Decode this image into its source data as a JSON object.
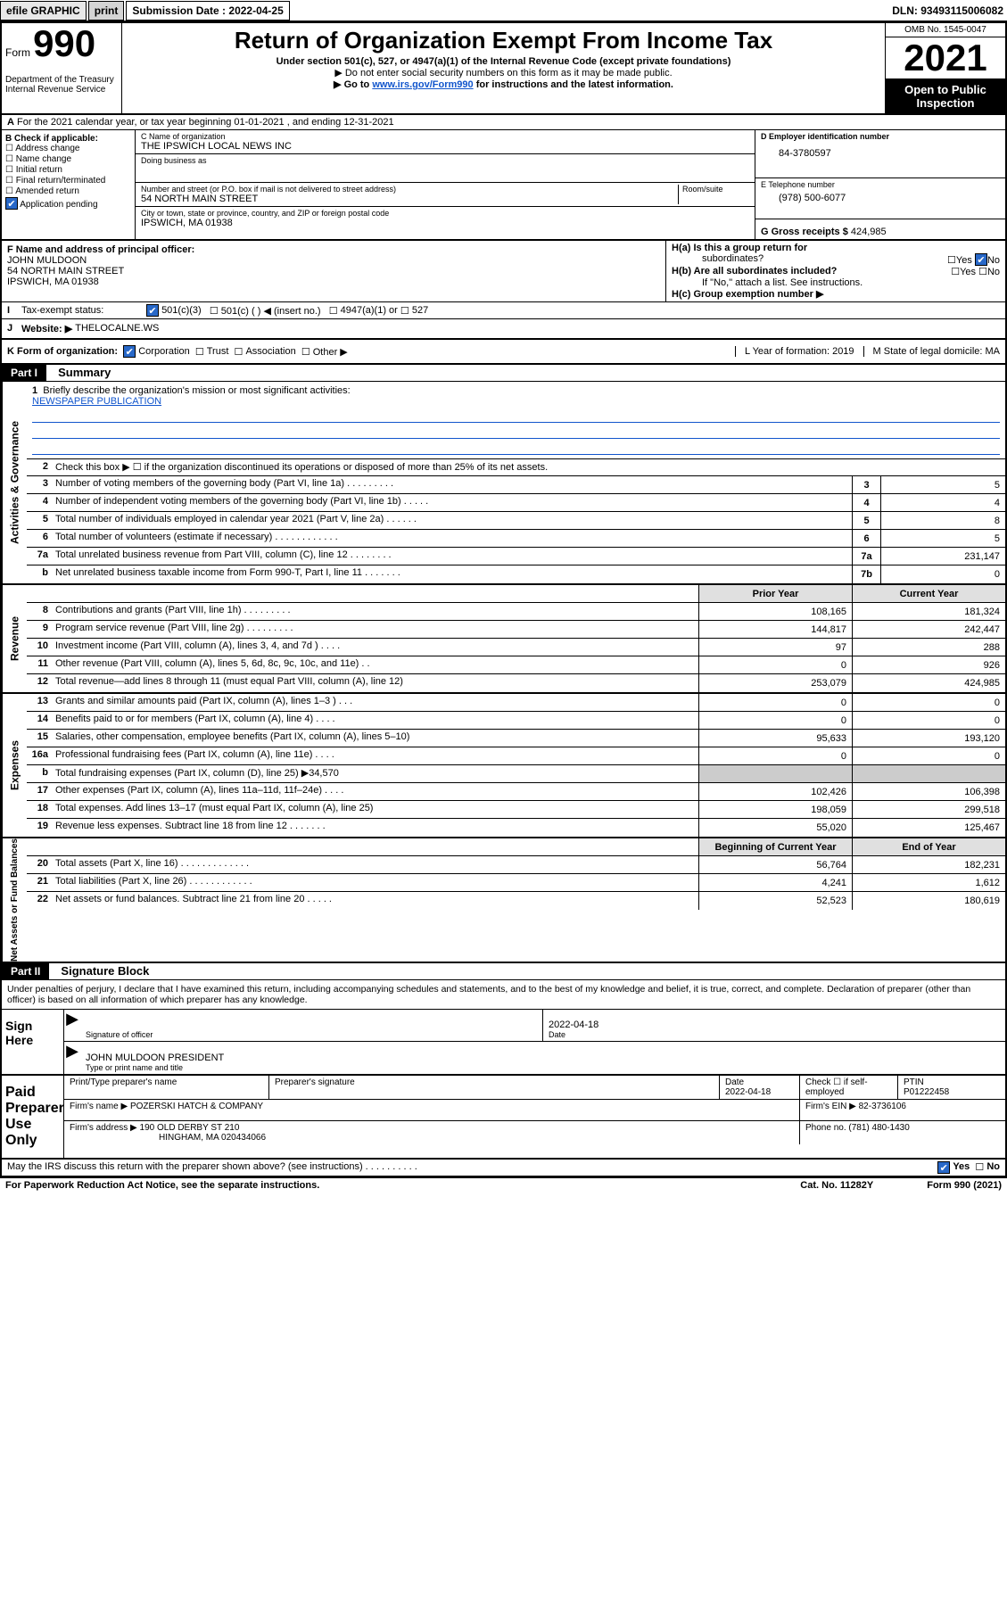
{
  "topbar": {
    "efile": "efile GRAPHIC",
    "print": "print",
    "sub_label": "Submission Date :",
    "sub_date": "2022-04-25",
    "dln": "DLN: 93493115006082"
  },
  "header": {
    "form_label": "Form",
    "form_num": "990",
    "dept": "Department of the Treasury\nInternal Revenue Service",
    "title": "Return of Organization Exempt From Income Tax",
    "subtitle": "Under section 501(c), 527, or 4947(a)(1) of the Internal Revenue Code (except private foundations)",
    "sub2": "▶ Do not enter social security numbers on this form as it may be made public.",
    "sub3_a": "▶ Go to ",
    "sub3_link": "www.irs.gov/Form990",
    "sub3_b": " for instructions and the latest information.",
    "omb": "OMB No. 1545-0047",
    "year": "2021",
    "inspect": "Open to Public Inspection"
  },
  "rowA": "For the 2021 calendar year, or tax year beginning 01-01-2021    , and ending 12-31-2021",
  "boxB": {
    "label": "B Check if applicable:",
    "opts": [
      "Address change",
      "Name change",
      "Initial return",
      "Final return/terminated",
      "Amended return",
      "Application pending"
    ]
  },
  "boxC": {
    "name_lbl": "C Name of organization",
    "name": "THE IPSWICH LOCAL NEWS INC",
    "dba_lbl": "Doing business as",
    "street_lbl": "Number and street (or P.O. box if mail is not delivered to street address)",
    "room_lbl": "Room/suite",
    "street": "54 NORTH MAIN STREET",
    "city_lbl": "City or town, state or province, country, and ZIP or foreign postal code",
    "city": "IPSWICH, MA  01938"
  },
  "boxD": {
    "lbl": "D Employer identification number",
    "val": "84-3780597"
  },
  "boxE": {
    "lbl": "E Telephone number",
    "val": "(978) 500-6077"
  },
  "boxG": {
    "lbl": "G Gross receipts $",
    "val": "424,985"
  },
  "boxF": {
    "lbl": "F Name and address of principal officer:",
    "name": "JOHN MULDOON",
    "street": "54 NORTH MAIN STREET",
    "city": "IPSWICH, MA  01938"
  },
  "boxH": {
    "a": "H(a)  Is this a group return for",
    "a2": "subordinates?",
    "b": "H(b)  Are all subordinates included?",
    "note": "If \"No,\" attach a list. See instructions.",
    "c": "H(c)  Group exemption number ▶",
    "yes": "Yes",
    "no": "No"
  },
  "rowI": {
    "lbl": "Tax-exempt status:",
    "opt1": "501(c)(3)",
    "opt2": "501(c) (  ) ◀ (insert no.)",
    "opt3": "4947(a)(1) or",
    "opt4": "527"
  },
  "rowJ": {
    "lbl": "Website: ▶",
    "val": "THELOCALNE.WS"
  },
  "rowK": {
    "lbl": "K Form of organization:",
    "opts": [
      "Corporation",
      "Trust",
      "Association",
      "Other ▶"
    ],
    "L": "L Year of formation: 2019",
    "M": "M State of legal domicile: MA"
  },
  "part1": {
    "hdr": "Part I",
    "title": "Summary"
  },
  "sections": {
    "gov": {
      "side": "Activities & Governance",
      "q1": "Briefly describe the organization's mission or most significant activities:",
      "mission": "NEWSPAPER PUBLICATION",
      "q2": "Check this box ▶ ☐  if the organization discontinued its operations or disposed of more than 25% of its net assets.",
      "rows": [
        {
          "n": "3",
          "d": "Number of voting members of the governing body (Part VI, line 1a)  .   .   .   .   .   .   .   .   .",
          "c": "3",
          "v": "5"
        },
        {
          "n": "4",
          "d": "Number of independent voting members of the governing body (Part VI, line 1b)   .   .   .   .   .",
          "c": "4",
          "v": "4"
        },
        {
          "n": "5",
          "d": "Total number of individuals employed in calendar year 2021 (Part V, line 2a)  .   .   .   .   .   .",
          "c": "5",
          "v": "8"
        },
        {
          "n": "6",
          "d": "Total number of volunteers (estimate if necessary)   .   .   .   .   .   .   .   .   .   .   .   .",
          "c": "6",
          "v": "5"
        },
        {
          "n": "7a",
          "d": "Total unrelated business revenue from Part VIII, column (C), line 12   .   .   .   .   .   .   .   .",
          "c": "7a",
          "v": "231,147"
        },
        {
          "n": "b",
          "d": "Net unrelated business taxable income from Form 990-T, Part I, line 11   .   .   .   .   .   .   .",
          "c": "7b",
          "v": "0"
        }
      ]
    },
    "rev": {
      "side": "Revenue",
      "hdr_prior": "Prior Year",
      "hdr_curr": "Current Year",
      "rows": [
        {
          "n": "8",
          "d": "Contributions and grants (Part VIII, line 1h)   .   .   .   .   .   .   .   .   .",
          "p": "108,165",
          "c": "181,324"
        },
        {
          "n": "9",
          "d": "Program service revenue (Part VIII, line 2g)   .   .   .   .   .   .   .   .   .",
          "p": "144,817",
          "c": "242,447"
        },
        {
          "n": "10",
          "d": "Investment income (Part VIII, column (A), lines 3, 4, and 7d )   .   .   .   .",
          "p": "97",
          "c": "288"
        },
        {
          "n": "11",
          "d": "Other revenue (Part VIII, column (A), lines 5, 6d, 8c, 9c, 10c, and 11e)   .   .",
          "p": "0",
          "c": "926"
        },
        {
          "n": "12",
          "d": "Total revenue—add lines 8 through 11 (must equal Part VIII, column (A), line 12)",
          "p": "253,079",
          "c": "424,985"
        }
      ]
    },
    "exp": {
      "side": "Expenses",
      "rows": [
        {
          "n": "13",
          "d": "Grants and similar amounts paid (Part IX, column (A), lines 1–3 )   .   .   .",
          "p": "0",
          "c": "0"
        },
        {
          "n": "14",
          "d": "Benefits paid to or for members (Part IX, column (A), line 4)   .   .   .   .",
          "p": "0",
          "c": "0"
        },
        {
          "n": "15",
          "d": "Salaries, other compensation, employee benefits (Part IX, column (A), lines 5–10)",
          "p": "95,633",
          "c": "193,120"
        },
        {
          "n": "16a",
          "d": "Professional fundraising fees (Part IX, column (A), line 11e)   .   .   .   .",
          "p": "0",
          "c": "0"
        },
        {
          "n": "b",
          "d": "Total fundraising expenses (Part IX, column (D), line 25) ▶34,570",
          "p": "",
          "c": "",
          "shade": true
        },
        {
          "n": "17",
          "d": "Other expenses (Part IX, column (A), lines 11a–11d, 11f–24e)   .   .   .   .",
          "p": "102,426",
          "c": "106,398"
        },
        {
          "n": "18",
          "d": "Total expenses. Add lines 13–17 (must equal Part IX, column (A), line 25)",
          "p": "198,059",
          "c": "299,518"
        },
        {
          "n": "19",
          "d": "Revenue less expenses. Subtract line 18 from line 12 .   .   .   .   .   .   .",
          "p": "55,020",
          "c": "125,467"
        }
      ]
    },
    "net": {
      "side": "Net Assets or Fund Balances",
      "hdr_beg": "Beginning of Current Year",
      "hdr_end": "End of Year",
      "rows": [
        {
          "n": "20",
          "d": "Total assets (Part X, line 16)   .   .   .   .   .   .   .   .   .   .   .   .   .",
          "p": "56,764",
          "c": "182,231"
        },
        {
          "n": "21",
          "d": "Total liabilities (Part X, line 26)    .   .   .   .   .   .   .   .   .   .   .   .",
          "p": "4,241",
          "c": "1,612"
        },
        {
          "n": "22",
          "d": "Net assets or fund balances. Subtract line 21 from line 20 .   .   .   .   .",
          "p": "52,523",
          "c": "180,619"
        }
      ]
    }
  },
  "part2": {
    "hdr": "Part II",
    "title": "Signature Block"
  },
  "sig": {
    "note": "Under penalties of perjury, I declare that I have examined this return, including accompanying schedules and statements, and to the best of my knowledge and belief, it is true, correct, and complete. Declaration of preparer (other than officer) is based on all information of which preparer has any knowledge.",
    "sign_here": "Sign Here",
    "off_lbl": "Signature of officer",
    "date": "2022-04-18",
    "date_lbl": "Date",
    "name": "JOHN MULDOON PRESIDENT",
    "name_lbl": "Type or print name and title"
  },
  "prep": {
    "side": "Paid Preparer Use Only",
    "h1": "Print/Type preparer's name",
    "h2": "Preparer's signature",
    "h3": "Date",
    "h3v": "2022-04-18",
    "h4": "Check ☐ if self-employed",
    "h5": "PTIN",
    "h5v": "P01222458",
    "firm_lbl": "Firm's name    ▶",
    "firm": "POZERSKI HATCH & COMPANY",
    "ein_lbl": "Firm's EIN ▶",
    "ein": "82-3736106",
    "addr_lbl": "Firm's address ▶",
    "addr1": "190 OLD DERBY ST 210",
    "addr2": "HINGHAM, MA  020434066",
    "phone_lbl": "Phone no.",
    "phone": "(781) 480-1430"
  },
  "footer": {
    "q": "May the IRS discuss this return with the preparer shown above? (see instructions)   .   .   .   .   .   .   .   .   .   .",
    "yes": "Yes",
    "no": "No",
    "pra": "For Paperwork Reduction Act Notice, see the separate instructions.",
    "cat": "Cat. No. 11282Y",
    "form": "Form 990 (2021)"
  }
}
